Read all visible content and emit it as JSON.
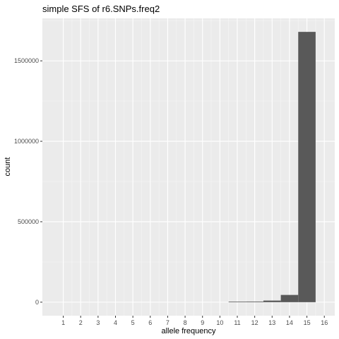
{
  "chart_data": {
    "type": "bar",
    "title": "simple SFS of r6.SNPs.freq2",
    "xlabel": "allele frequency",
    "ylabel": "count",
    "x": [
      11,
      12,
      13,
      14,
      15
    ],
    "values": [
      3000,
      4000,
      10000,
      45000,
      1680000
    ],
    "bar_width": 1,
    "x_ticks": [
      1,
      2,
      3,
      4,
      5,
      6,
      7,
      8,
      9,
      10,
      11,
      12,
      13,
      14,
      15,
      16
    ],
    "x_tick_labels": [
      "1",
      "2",
      "3",
      "4",
      "5",
      "6",
      "7",
      "8",
      "9",
      "10",
      "11",
      "12",
      "13",
      "14",
      "15",
      "16"
    ],
    "y_ticks": [
      0,
      500000,
      1000000,
      1500000
    ],
    "y_tick_labels": [
      "0",
      "500000",
      "1000000",
      "1500000"
    ],
    "xlim": [
      -0.2,
      16.6
    ],
    "ylim": [
      -84000,
      1764000
    ],
    "grid": true,
    "colors": {
      "bar": "#595959",
      "panel": "#ebebeb",
      "grid_major": "#ffffff",
      "grid_minor": "#f5f5f5",
      "tick_text": "#4d4d4d",
      "tick_mark": "#333333"
    }
  }
}
